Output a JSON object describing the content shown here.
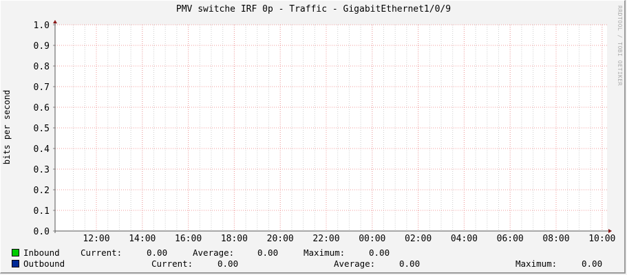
{
  "chart_data": {
    "type": "line",
    "title": "PMV switche IRF 0p - Traffic - GigabitEthernet1/0/9",
    "ylabel": "bits per second",
    "xlabel": "",
    "ylim": [
      0,
      1.0
    ],
    "y_ticks": [
      "0.0",
      "0.1",
      "0.2",
      "0.3",
      "0.4",
      "0.5",
      "0.6",
      "0.7",
      "0.8",
      "0.9",
      "1.0"
    ],
    "x_ticks": [
      "12:00",
      "14:00",
      "16:00",
      "18:00",
      "20:00",
      "22:00",
      "00:00",
      "02:00",
      "04:00",
      "06:00",
      "08:00",
      "10:00"
    ],
    "grid": true,
    "series": [
      {
        "name": "Inbound",
        "color": "#00cc00",
        "values": []
      },
      {
        "name": "Outbound",
        "color": "#002a97",
        "values": []
      }
    ]
  },
  "legend": {
    "inbound": {
      "name": "Inbound",
      "current_label": "Current:",
      "current": "0.00",
      "average_label": "Average:",
      "average": "0.00",
      "maximum_label": "Maximum:",
      "maximum": "0.00"
    },
    "outbound": {
      "name": "Outbound",
      "current_label": "Current:",
      "current": "0.00",
      "average_label": "Average:",
      "average": "0.00",
      "maximum_label": "Maximum:",
      "maximum": "0.00"
    }
  },
  "watermark": "RRDTOOL / TOBI OETIKER"
}
